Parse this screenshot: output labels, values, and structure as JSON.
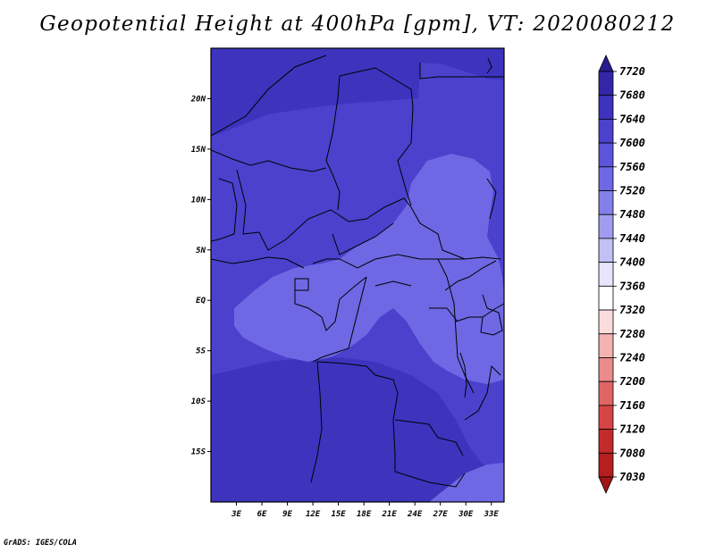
{
  "title": "Geopotential Height at 400hPa [gpm], VT: 2020080212",
  "credit": "GrADS: IGES/COLA",
  "map": {
    "lon_range": [
      0,
      34.5
    ],
    "lat_range": [
      -20,
      25
    ],
    "lon_ticks": [
      "3E",
      "6E",
      "9E",
      "12E",
      "15E",
      "18E",
      "21E",
      "24E",
      "27E",
      "30E",
      "33E"
    ],
    "lat_ticks": [
      "20N",
      "15N",
      "10N",
      "5N",
      "EQ",
      "5S",
      "10S",
      "15S"
    ],
    "region": "West/Central Africa"
  },
  "colorbar": {
    "labels": [
      "7720",
      "7680",
      "7640",
      "7600",
      "7560",
      "7520",
      "7480",
      "7440",
      "7400",
      "7360",
      "7320",
      "7280",
      "7240",
      "7200",
      "7160",
      "7120",
      "7080",
      "7030"
    ],
    "colors": [
      "#281c90",
      "#3326a8",
      "#3d33bd",
      "#4b41cd",
      "#5c54da",
      "#6e68e4",
      "#8480ea",
      "#a09df0",
      "#c2c0f6",
      "#e6e5fb",
      "#ffffff",
      "#fbdcdc",
      "#f4b2b2",
      "#eb8b8b",
      "#e06666",
      "#d64545",
      "#c52a2a",
      "#b51f1f",
      "#a01616"
    ]
  },
  "field_colors": {
    "high": "#3d33bd",
    "mid": "#4b41cd",
    "low": "#6e68e4"
  }
}
